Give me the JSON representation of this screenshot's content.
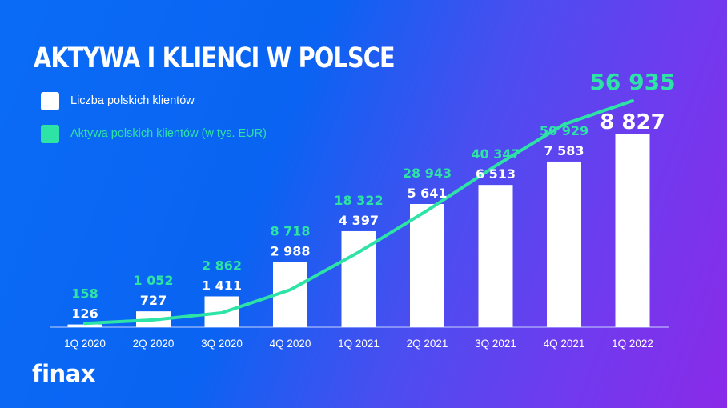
{
  "header": {
    "title": "AKTYWA I KLIENCI W POLSCE"
  },
  "legend": [
    {
      "label": "Liczba polskich klientów",
      "color": "#ffffff"
    },
    {
      "label": "Aktywa polskich klientów (w tys. EUR)",
      "color": "#2de3a5"
    }
  ],
  "brand": {
    "logo": "finax"
  },
  "colors": {
    "bar": "#ffffff",
    "line": "#2de3a5",
    "axis": "#c8d4ff",
    "label_white": "#ffffff",
    "label_green": "#2de3a5"
  },
  "chart_data": {
    "type": "bar+line",
    "title": "AKTYWA I KLIENCI W POLSCE",
    "categories": [
      "1Q 2020",
      "2Q 2020",
      "3Q 2020",
      "4Q 2020",
      "1Q 2021",
      "2Q 2021",
      "3Q 2021",
      "4Q 2021",
      "1Q 2022"
    ],
    "series": [
      {
        "name": "Liczba polskich klientów",
        "type": "bar",
        "values": [
          126,
          727,
          1411,
          2988,
          4397,
          5641,
          6513,
          7583,
          8827
        ],
        "labels": [
          "126",
          "727",
          "1 411",
          "2 988",
          "4 397",
          "5 641",
          "6 513",
          "7 583",
          "8 827"
        ]
      },
      {
        "name": "Aktywa polskich klientów (w tys. EUR)",
        "type": "line",
        "values": [
          158,
          1052,
          2862,
          8718,
          18322,
          28943,
          40347,
          50929,
          56935
        ],
        "labels": [
          "158",
          "1 052",
          "2 862",
          "8 718",
          "18 322",
          "28 943",
          "40 347",
          "50 929",
          "56 935"
        ]
      }
    ],
    "xlabel": "",
    "ylabel": "",
    "grid": false,
    "legend_position": "top-left"
  }
}
